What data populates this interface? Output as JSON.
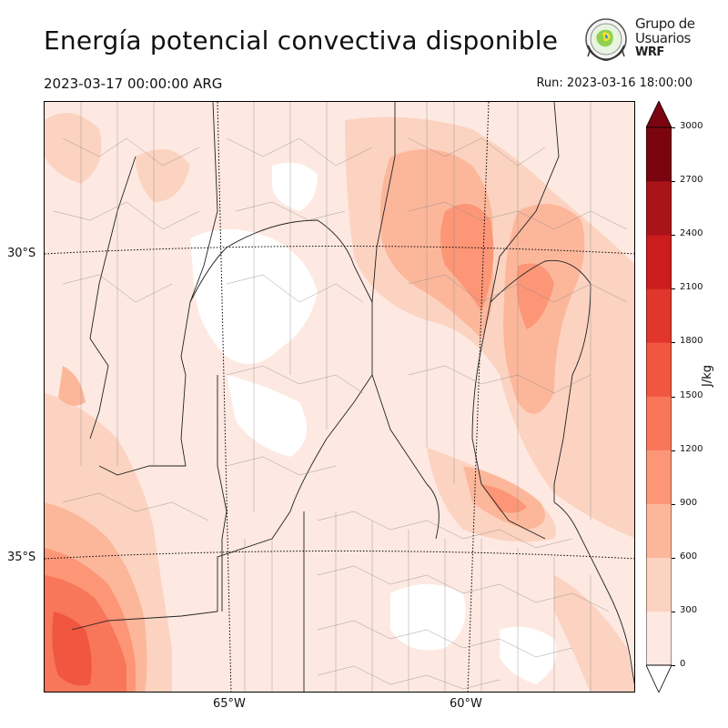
{
  "title": "Energía potencial convectiva disponible",
  "valid_time": "2023-03-17 00:00:00 ARG",
  "run_time": "Run: 2023-03-16 18:00:00",
  "logo": {
    "line1": "Grupo de",
    "line2": "Usuarios",
    "line3": "WRF"
  },
  "map": {
    "lat_labels": [
      "30°S",
      "35°S"
    ],
    "lon_labels": [
      "65°W",
      "60°W"
    ]
  },
  "colorbar": {
    "unit": "J/kg",
    "ticks": [
      "3000",
      "2700",
      "2400",
      "2100",
      "1800",
      "1500",
      "1200",
      "900",
      "600",
      "300",
      "0"
    ],
    "colors": [
      "#fde9e1",
      "#fcd3c0",
      "#fcb79b",
      "#fc9677",
      "#f8765a",
      "#f05640",
      "#e0362b",
      "#cb1c1e",
      "#a91419",
      "#7a0510"
    ]
  }
}
